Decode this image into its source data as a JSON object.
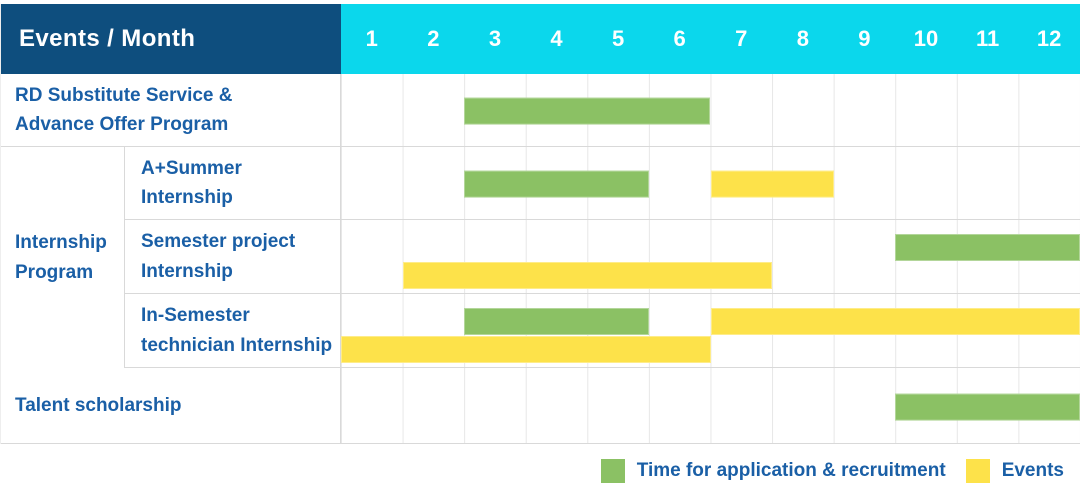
{
  "colors": {
    "header_bg": "#0e4e7e",
    "months_bg": "#0bd7ec",
    "application_green": "#8bc164",
    "event_yellow": "#fde24a",
    "label_blue": "#1a5fa6",
    "grid_line": "#e7e7e7",
    "row_border": "#d9d9d9"
  },
  "header": {
    "title": "Events / Month",
    "months": [
      "1",
      "2",
      "3",
      "4",
      "5",
      "6",
      "7",
      "8",
      "9",
      "10",
      "11",
      "12"
    ]
  },
  "legend": {
    "application_label": "Time for application & recruitment",
    "events_label": "Events"
  },
  "chart_data": {
    "type": "gantt",
    "title": "Events / Month",
    "x_axis": {
      "label": "Month",
      "ticks": [
        1,
        2,
        3,
        4,
        5,
        6,
        7,
        8,
        9,
        10,
        11,
        12
      ],
      "range": [
        1,
        12
      ]
    },
    "grid": "on",
    "legend_position": "bottom-right",
    "series_legend": [
      {
        "name": "Time for application & recruitment",
        "color": "#8bc164"
      },
      {
        "name": "Events",
        "color": "#fde24a"
      }
    ],
    "group_label": "Internship\nProgram",
    "rows": [
      {
        "group": "",
        "label": "RD Substitute Service &\nAdvance Offer Program",
        "bars": [
          {
            "kind": "application",
            "series": "Time for application & recruitment",
            "start_month": 3,
            "end_month": 6,
            "line": "center"
          }
        ]
      },
      {
        "group": "Internship Program",
        "label": "A+Summer\nInternship",
        "bars": [
          {
            "kind": "application",
            "series": "Time for application & recruitment",
            "start_month": 3,
            "end_month": 5,
            "line": "center"
          },
          {
            "kind": "event",
            "series": "Events",
            "start_month": 7,
            "end_month": 8,
            "line": "center"
          }
        ]
      },
      {
        "group": "Internship Program",
        "label": "Semester project\nInternship",
        "bars": [
          {
            "kind": "application",
            "series": "Time for application & recruitment",
            "start_month": 10,
            "end_month": 12,
            "line": "top"
          },
          {
            "kind": "event",
            "series": "Events",
            "start_month": 2,
            "end_month": 7,
            "line": "bottom"
          }
        ]
      },
      {
        "group": "Internship Program",
        "label": "In-Semester\ntechnician Internship",
        "bars": [
          {
            "kind": "application",
            "series": "Time for application & recruitment",
            "start_month": 3,
            "end_month": 5,
            "line": "top"
          },
          {
            "kind": "event",
            "series": "Events",
            "start_month": 7,
            "end_month": 12,
            "line": "top"
          },
          {
            "kind": "event",
            "series": "Events",
            "start_month": 1,
            "end_month": 6,
            "line": "bottom"
          }
        ]
      },
      {
        "group": "",
        "label": "Talent scholarship",
        "bars": [
          {
            "kind": "application",
            "series": "Time for application & recruitment",
            "start_month": 10,
            "end_month": 12,
            "line": "center"
          }
        ]
      }
    ]
  }
}
